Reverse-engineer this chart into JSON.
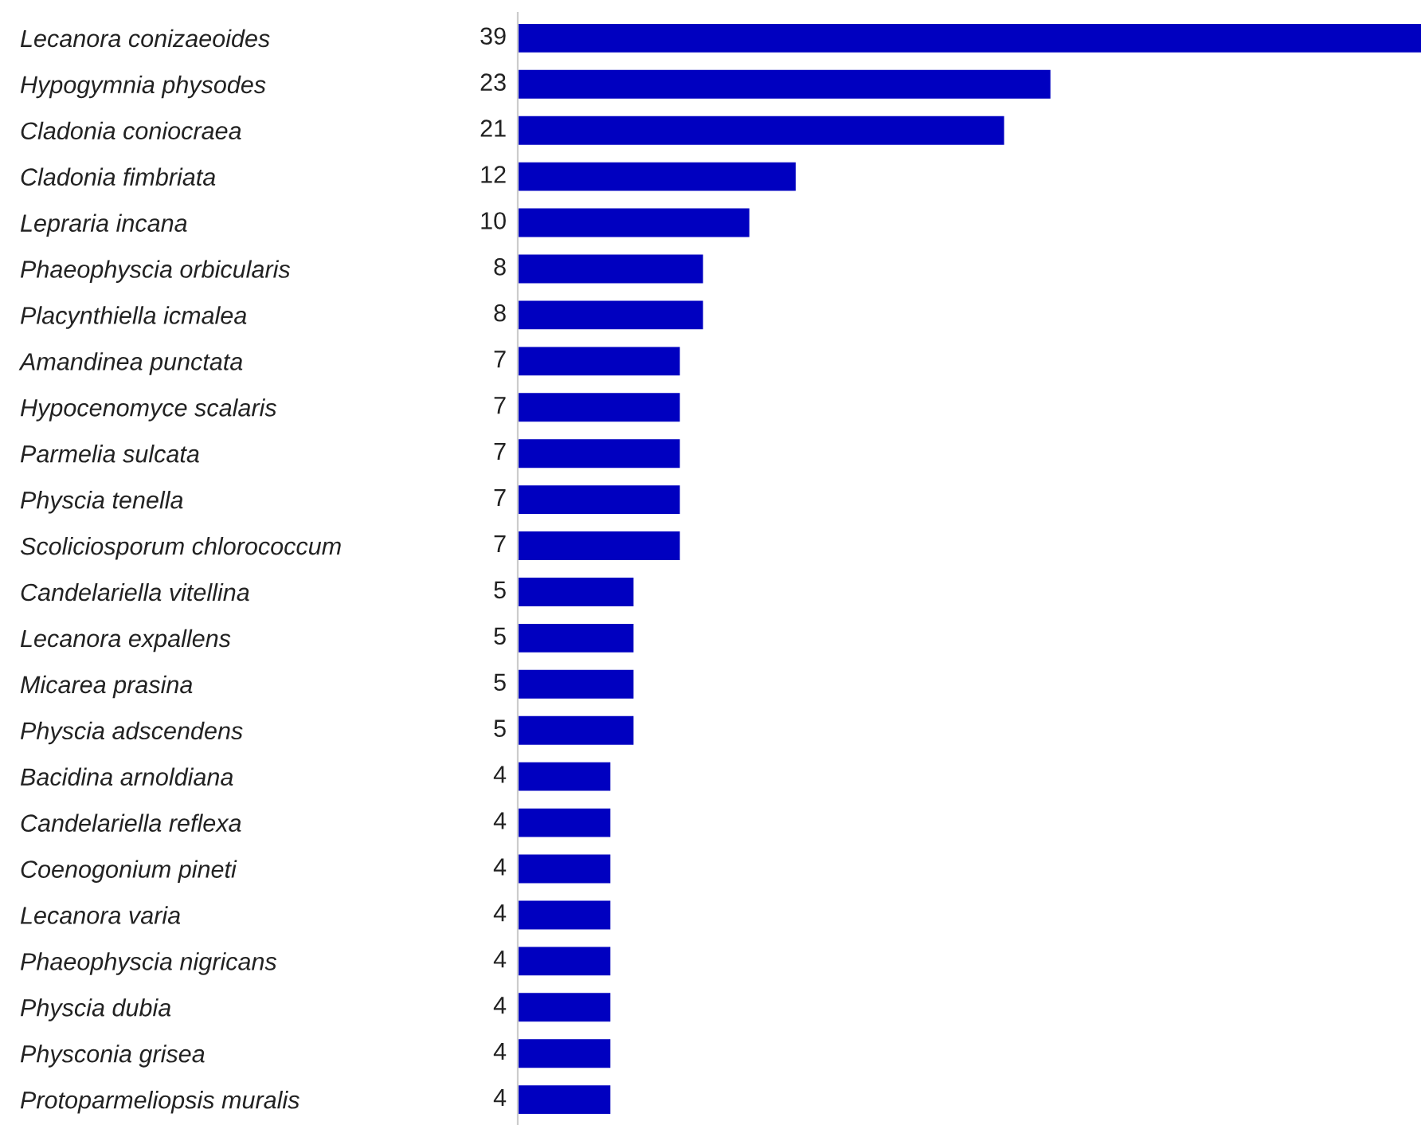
{
  "chart_data": {
    "type": "bar",
    "orientation": "horizontal",
    "categories": [
      "Lecanora conizaeoides",
      "Hypogymnia physodes",
      "Cladonia coniocraea",
      "Cladonia fimbriata",
      "Lepraria incana",
      "Phaeophyscia orbicularis",
      "Placynthiella icmalea",
      "Amandinea punctata",
      "Hypocenomyce scalaris",
      "Parmelia sulcata",
      "Physcia tenella",
      "Scoliciosporum chlorococcum",
      "Candelariella vitellina",
      "Lecanora expallens",
      "Micarea prasina",
      "Physcia adscendens",
      "Bacidina arnoldiana",
      "Candelariella reflexa",
      "Coenogonium pineti",
      "Lecanora varia",
      "Phaeophyscia nigricans",
      "Physcia dubia",
      "Physconia grisea",
      "Protoparmeliopsis muralis"
    ],
    "values": [
      39,
      23,
      21,
      12,
      10,
      8,
      8,
      7,
      7,
      7,
      7,
      7,
      5,
      5,
      5,
      5,
      4,
      4,
      4,
      4,
      4,
      4,
      4,
      4
    ],
    "color": "#0000c0",
    "xlim": [
      0,
      39
    ],
    "data_labels": true,
    "grid": false,
    "legend": false
  }
}
